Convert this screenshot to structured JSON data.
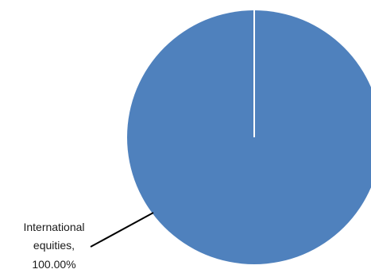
{
  "chart_data": {
    "type": "pie",
    "slices": [
      {
        "category": "International equities",
        "value": 100.0,
        "value_label": "100.00%",
        "color": "#4F81BD"
      }
    ],
    "data_label": {
      "line1": "International",
      "line2": "equities,",
      "line3": "100.00%"
    },
    "legend": "none",
    "separator_color": "#FFFFFF"
  }
}
